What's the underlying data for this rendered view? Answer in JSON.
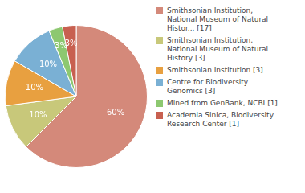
{
  "chart_data": {
    "type": "pie",
    "categories": [
      "Smithsonian Institution,\nNational Museum of Natural\nHistor... [17]",
      "Smithsonian Institution,\nNational Museum of Natural\nHistory [3]",
      "Smithsonian Institution [3]",
      "Centre for Biodiversity\nGenomics [3]",
      "Mined from GenBank, NCBI [1]",
      "Academia Sinica, Biodiversity\nResearch Center [1]"
    ],
    "values": [
      60,
      10,
      10,
      10,
      3,
      3
    ],
    "value_labels": [
      "60%",
      "10%",
      "10%",
      "10%",
      "3%",
      "3%"
    ],
    "colors": [
      "#d4897a",
      "#c8c87a",
      "#e8a040",
      "#7ab0d4",
      "#8dc870",
      "#c86050"
    ],
    "data_labels": true,
    "legend": "right"
  }
}
